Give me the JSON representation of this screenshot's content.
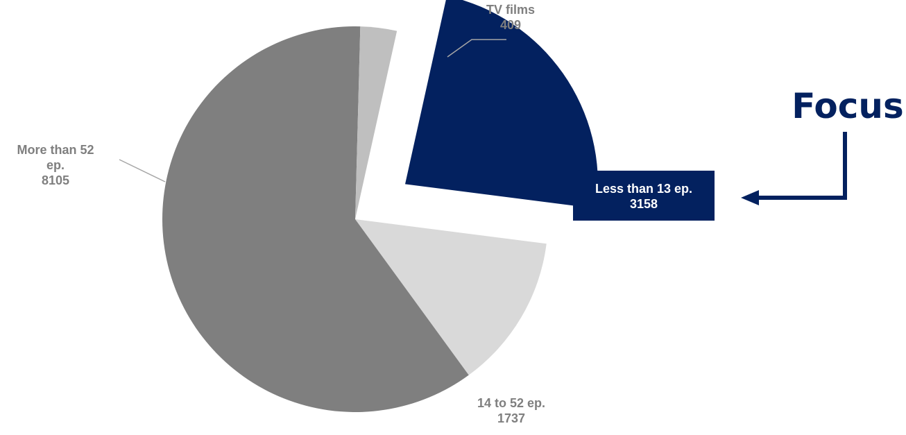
{
  "chart_data": {
    "type": "pie",
    "slices": [
      {
        "label_lines": [
          "Less than 13 ep."
        ],
        "value": 3158,
        "color": "#03215f",
        "exploded": true
      },
      {
        "label_lines": [
          "14 to 52 ep."
        ],
        "value": 1737,
        "color": "#d9d9d9",
        "exploded": false
      },
      {
        "label_lines": [
          "More than 52",
          "ep."
        ],
        "value": 8105,
        "color": "#7f7f7f",
        "exploded": false
      },
      {
        "label_lines": [
          "TV films"
        ],
        "value": 409,
        "color": "#bfbfbf",
        "exploded": false
      }
    ],
    "start_angle_deg": 12.5,
    "direction": "clockwise",
    "legend": "none"
  },
  "annotation": {
    "text": "Focus",
    "color": "#03215f",
    "arrow_icon": "elbow-arrow-left-icon"
  }
}
